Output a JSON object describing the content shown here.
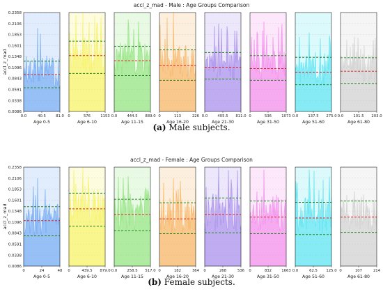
{
  "captions": {
    "a_label": "(a)",
    "a_text": "Male subjects.",
    "b_label": "(b)",
    "b_text": "Female subjects."
  },
  "colors": {
    "mean_line": "#dd2222",
    "std_line": "#228822",
    "groups": [
      "#5b9bf0",
      "#f5f04a",
      "#7fe06a",
      "#f5a84a",
      "#9b7be8",
      "#f07ae8",
      "#3fe0ef",
      "#c8c8c8"
    ]
  },
  "chart_data": [
    {
      "type": "area",
      "title": "accl_z_mad - Male : Age Groups Comparison",
      "ylabel": "accl_z_mad",
      "ylim": [
        0.0086,
        0.2358
      ],
      "yticks": [
        "0.0086",
        "0.0338",
        "0.0591",
        "0.0843",
        "0.1096",
        "0.1348",
        "0.1601",
        "0.1853",
        "0.2106",
        "0.2358"
      ],
      "grid": true,
      "panels": [
        {
          "name": "Age 0-5",
          "xticks": [
            "0.0",
            "40.5",
            "81.0"
          ],
          "mean": 0.093,
          "upper": 0.124,
          "lower": 0.063,
          "peak": 0.2
        },
        {
          "name": "Age 6-10",
          "xticks": [
            "0",
            "576",
            "1153"
          ],
          "mean": 0.137,
          "upper": 0.17,
          "lower": 0.096,
          "peak": 0.235
        },
        {
          "name": "Age 11-15",
          "xticks": [
            "0.0",
            "444.5",
            "889.0"
          ],
          "mean": 0.125,
          "upper": 0.158,
          "lower": 0.091,
          "peak": 0.22
        },
        {
          "name": "Age 16-20",
          "xticks": [
            "0",
            "113",
            "226"
          ],
          "mean": 0.114,
          "upper": 0.15,
          "lower": 0.08,
          "peak": 0.235
        },
        {
          "name": "Age 21-30",
          "xticks": [
            "0.0",
            "405.5",
            "811.0"
          ],
          "mean": 0.11,
          "upper": 0.144,
          "lower": 0.083,
          "peak": 0.21
        },
        {
          "name": "Age 31-50",
          "xticks": [
            "0",
            "536",
            "1073"
          ],
          "mean": 0.107,
          "upper": 0.137,
          "lower": 0.08,
          "peak": 0.215
        },
        {
          "name": "Age 51-60",
          "xticks": [
            "0.0",
            "137.5",
            "275.0"
          ],
          "mean": 0.098,
          "upper": 0.133,
          "lower": 0.07,
          "peak": 0.19
        },
        {
          "name": "Age 61-80",
          "xticks": [
            "0.0",
            "101.5",
            "203.0"
          ],
          "mean": 0.101,
          "upper": 0.132,
          "lower": 0.073,
          "peak": 0.18
        }
      ]
    },
    {
      "type": "area",
      "title": "accl_z_mad - Female : Age Groups Comparison",
      "ylabel": "accl_z_mad",
      "ylim": [
        0.0086,
        0.2358
      ],
      "yticks": [
        "0.0086",
        "0.0338",
        "0.0591",
        "0.0843",
        "0.1096",
        "0.1348",
        "0.1601",
        "0.1853",
        "0.2106",
        "0.2358"
      ],
      "grid": true,
      "panels": [
        {
          "name": "Age 0-5",
          "xticks": [
            "0",
            "24",
            "48"
          ],
          "mean": 0.113,
          "upper": 0.145,
          "lower": 0.078,
          "peak": 0.21
        },
        {
          "name": "Age 6-10",
          "xticks": [
            "0",
            "439.5",
            "879.0"
          ],
          "mean": 0.14,
          "upper": 0.176,
          "lower": 0.1,
          "peak": 0.235
        },
        {
          "name": "Age 11-15",
          "xticks": [
            "0.0",
            "258.5",
            "517.0"
          ],
          "mean": 0.127,
          "upper": 0.162,
          "lower": 0.09,
          "peak": 0.215
        },
        {
          "name": "Age 16-20",
          "xticks": [
            "0",
            "182",
            "364"
          ],
          "mean": 0.117,
          "upper": 0.154,
          "lower": 0.083,
          "peak": 0.21
        },
        {
          "name": "Age 21-30",
          "xticks": [
            "0",
            "268",
            "536"
          ],
          "mean": 0.127,
          "upper": 0.165,
          "lower": 0.085,
          "peak": 0.235
        },
        {
          "name": "Age 31-50",
          "xticks": [
            "0",
            "832",
            "1663"
          ],
          "mean": 0.121,
          "upper": 0.158,
          "lower": 0.083,
          "peak": 0.23
        },
        {
          "name": "Age 51-60",
          "xticks": [
            "0.0",
            "62.5",
            "125.0"
          ],
          "mean": 0.119,
          "upper": 0.155,
          "lower": 0.081,
          "peak": 0.23
        },
        {
          "name": "Age 61-80",
          "xticks": [
            "0",
            "107",
            "214"
          ],
          "mean": 0.121,
          "upper": 0.158,
          "lower": 0.086,
          "peak": 0.18
        }
      ]
    }
  ]
}
